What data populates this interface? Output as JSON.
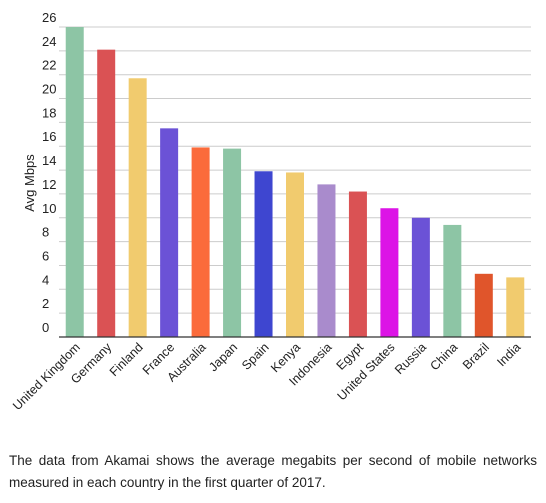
{
  "chart_data": {
    "type": "bar",
    "title": "",
    "xlabel": "",
    "ylabel": "Avg Mbps",
    "ylim": [
      0,
      26
    ],
    "yticks": [
      0,
      2,
      4,
      6,
      8,
      10,
      12,
      14,
      16,
      18,
      20,
      22,
      24,
      26
    ],
    "grid": true,
    "legend": "none",
    "categories": [
      "United Kingdom",
      "Germany",
      "Finland",
      "France",
      "Australia",
      "Japan",
      "Spain",
      "Kenya",
      "Indonesia",
      "Egypt",
      "United States",
      "Russia",
      "China",
      "Brazil",
      "India"
    ],
    "values": [
      26.0,
      24.1,
      21.7,
      17.5,
      15.9,
      15.8,
      13.9,
      13.8,
      12.8,
      12.2,
      10.8,
      10.0,
      9.4,
      5.3,
      5.0
    ],
    "colors": [
      "#8dc5a5",
      "#da5254",
      "#f1cb6e",
      "#6b52d6",
      "#fb6b3b",
      "#8dc5a5",
      "#3e46d0",
      "#f1cb6e",
      "#a98bcc",
      "#da5254",
      "#dc14e6",
      "#6b52d6",
      "#8dc5a5",
      "#e0552b",
      "#f1cb6e"
    ]
  },
  "caption": "The data from Akamai shows the average megabits per second of mobile networks measured in each country in the first quarter of 2017."
}
